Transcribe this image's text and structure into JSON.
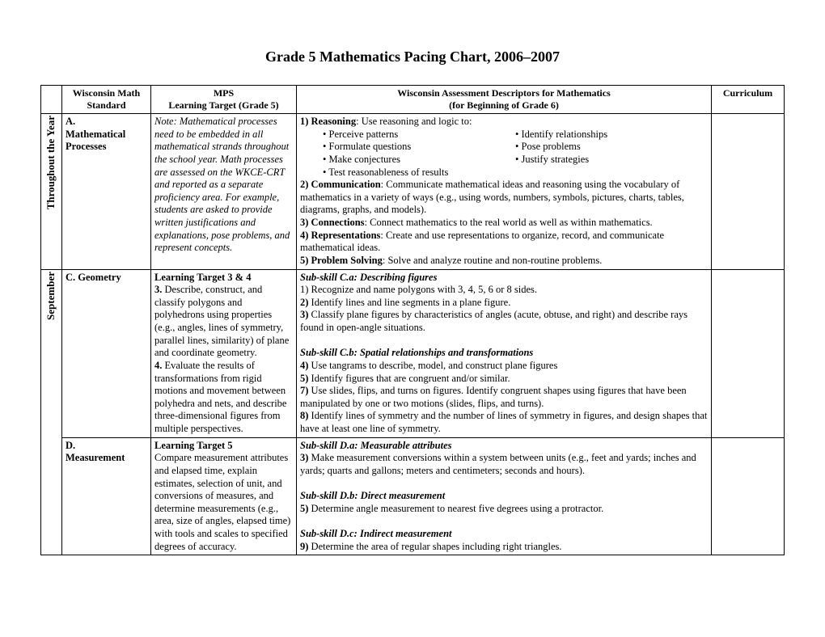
{
  "title": "Grade 5 Mathematics Pacing Chart, 2006–2007",
  "headers": {
    "period": "",
    "standard_l1": "Wisconsin Math",
    "standard_l2": "Standard",
    "mps_l1": "MPS",
    "mps_l2": "Learning Target (Grade 5)",
    "desc_l1": "Wisconsin Assessment Descriptors for Mathematics",
    "desc_l2": "(for Beginning of Grade 6)",
    "curr": "Curriculum"
  },
  "periods": {
    "year": "Throughout the Year",
    "sept": "September"
  },
  "rowA": {
    "standard_code": "A.",
    "standard_name": "Mathematical Processes",
    "mps": "Note: Mathematical processes need to be embedded in all mathematical strands throughout the school year. Math processes are assessed on the WKCE-CRT and reported as a separate proficiency area. For example, students are asked to provide written justifications and explanations, pose problems, and represent concepts.",
    "desc": {
      "r1_lead": "1) Reasoning",
      "r1_tail": ": Use reasoning and logic to:",
      "b1a": "• Perceive patterns",
      "b1b": "• Identify relationships",
      "b2a": "• Formulate questions",
      "b2b": "• Pose problems",
      "b3a": "• Make conjectures",
      "b3b": "• Justify strategies",
      "b4": "• Test reasonableness of results",
      "r2_lead": "2) Communication",
      "r2_tail": ": Communicate mathematical ideas and reasoning using the vocabulary of mathematics in a variety of ways (e.g., using words, numbers, symbols, pictures, charts, tables, diagrams, graphs, and models).",
      "r3_lead": "3) Connections",
      "r3_tail": ": Connect mathematics to the real world as well as within mathematics.",
      "r4_lead": "4) Representations",
      "r4_tail": ": Create and use representations to organize, record, and communicate mathematical ideas.",
      "r5_lead": "5) Problem Solving",
      "r5_tail": ": Solve and analyze routine and non-routine problems."
    }
  },
  "rowC": {
    "standard_code": "C. Geometry",
    "mps": {
      "lt": "Learning Target 3 & 4",
      "t3_lead": "3.",
      "t3": " Describe, construct, and classify polygons and polyhedrons using properties (e.g., angles, lines of symmetry, parallel lines, similarity) of plane and coordinate geometry.",
      "t4_lead": "4.",
      "t4": " Evaluate the results of transformations from rigid motions and movement between polyhedra and nets, and describe three-dimensional figures from multiple perspectives."
    },
    "desc": {
      "sa": "Sub-skill C.a: Describing figures",
      "l1": "1) Recognize and name polygons with 3, 4, 5, 6 or 8 sides.",
      "l2_lead": "2)",
      "l2": " Identify lines and line segments in a plane figure.",
      "l3_lead": "3)",
      "l3": " Classify plane figures by characteristics of angles (acute, obtuse, and right) and describe rays found in open-angle situations.",
      "sb": "Sub-skill C.b: Spatial relationships and transformations",
      "l4_lead": "4)",
      "l4": " Use tangrams to describe, model, and construct plane figures",
      "l5_lead": "5)",
      "l5": " Identify figures that are congruent and/or similar.",
      "l7_lead": "7)",
      "l7": " Use slides, flips, and turns on figures. Identify congruent shapes using figures that have been manipulated by one or two motions (slides, flips, and turns).",
      "l8_lead": "8)",
      "l8": " Identify lines of symmetry and the number of lines of symmetry in figures, and design shapes that have at least one line of symmetry."
    }
  },
  "rowD": {
    "standard_code": "D.",
    "standard_name": "Measurement",
    "mps": {
      "lt": "Learning Target 5",
      "body": "Compare measurement attributes and elapsed time, explain estimates, selection of unit, and conversions of measures, and determine measurements (e.g., area, size of angles, elapsed time) with tools and scales to specified degrees of accuracy."
    },
    "desc": {
      "sa": "Sub-skill D.a: Measurable attributes",
      "l3_lead": "3)",
      "l3": " Make measurement conversions within a system between units (e.g., feet and yards; inches and yards; quarts and gallons; meters and centimeters; seconds and hours).",
      "sb": "Sub-skill D.b: Direct measurement",
      "l5_lead": "5)",
      "l5": " Determine angle measurement to nearest five degrees using a protractor.",
      "sc": "Sub-skill D.c: Indirect measurement",
      "l9_lead": "9)",
      "l9": " Determine the area of regular shapes including right triangles."
    }
  }
}
